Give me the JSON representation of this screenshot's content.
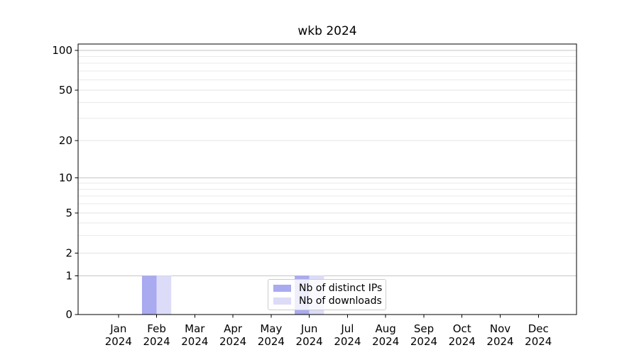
{
  "figure": {
    "background": "#ffffff"
  },
  "chart_data": {
    "type": "bar",
    "title": "wkb 2024",
    "x": {
      "categories": [
        "Jan",
        "Feb",
        "Mar",
        "Apr",
        "May",
        "Jun",
        "Jul",
        "Aug",
        "Sep",
        "Oct",
        "Nov",
        "Dec"
      ],
      "year": "2024"
    },
    "series": [
      {
        "name": "Nb of distinct IPs",
        "color": "#aaaaf0",
        "values": [
          0,
          1,
          0,
          0,
          0,
          1,
          0,
          0,
          0,
          0,
          0,
          0
        ]
      },
      {
        "name": "Nb of downloads",
        "color": "#dcdcf8",
        "values": [
          0,
          1,
          0,
          0,
          0,
          1,
          0,
          0,
          0,
          0,
          0,
          0
        ]
      }
    ],
    "yaxis": {
      "scale": "symlog",
      "tick_values": [
        0,
        1,
        2,
        5,
        10,
        20,
        50,
        100
      ],
      "tick_labels": [
        "0",
        "1",
        "2",
        "5",
        "10",
        "20",
        "50",
        "100"
      ],
      "minor_tick_values": [
        3,
        4,
        6,
        7,
        8,
        9,
        30,
        40,
        60,
        70,
        80,
        90
      ],
      "range": [
        0,
        112
      ],
      "grid": true
    },
    "legend": {
      "location": "lower center inside plot",
      "entries": [
        "Nb of distinct IPs",
        "Nb of downloads"
      ]
    },
    "colors": {
      "grid_decade": "#c6c6c6",
      "grid_labeled_light": "#e3e3e3",
      "grid_minor": "#eaeaea",
      "axis": "#000000",
      "legend_border": "#cccccc",
      "background": "#ffffff"
    }
  }
}
